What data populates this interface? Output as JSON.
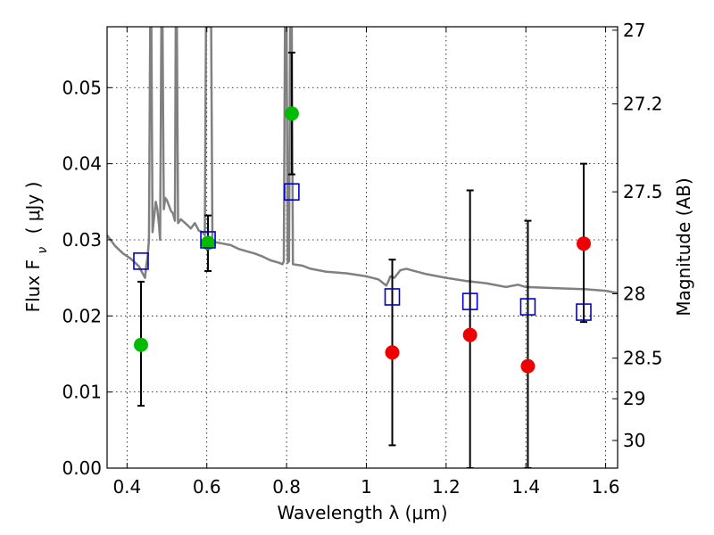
{
  "chart_data": {
    "type": "scatter",
    "xlabel": "Wavelength  λ (μm)",
    "ylabel": "Flux  F",
    "ylabel_sub": "ν",
    "ylabel_unit": "( μJy )",
    "y2label": "Magnitude (AB)",
    "xlim": [
      0.35,
      1.63
    ],
    "ylim": [
      0.0,
      0.058
    ],
    "grid": true,
    "x_ticks": [
      0.4,
      0.6,
      0.8,
      1.0,
      1.2,
      1.4,
      1.6
    ],
    "x_tick_labels": [
      "0.4",
      "0.6",
      "0.8",
      "1",
      "1.2",
      "1.4",
      "1.6"
    ],
    "y_ticks": [
      0.0,
      0.01,
      0.02,
      0.03,
      0.04,
      0.05
    ],
    "y_tick_labels": [
      "0.00",
      "0.01",
      "0.02",
      "0.03",
      "0.04",
      "0.05"
    ],
    "y2_ticks": [
      27,
      27.2,
      27.5,
      28,
      28.5,
      29,
      30
    ],
    "y2_tick_labels": [
      "27",
      "27.2",
      "27.5",
      "28",
      "28.5",
      "29",
      "30"
    ],
    "colors": {
      "model": "#808080",
      "green_points": "#00bb00",
      "red_points": "#ee0000",
      "model_squares": "#0000cc",
      "errorbars": "#000000"
    },
    "series": [
      {
        "kind": "line",
        "points": [
          [
            0.35,
            0.0306
          ],
          [
            0.37,
            0.0292
          ],
          [
            0.39,
            0.0282
          ],
          [
            0.41,
            0.0275
          ],
          [
            0.43,
            0.0265
          ],
          [
            0.44,
            0.0255
          ],
          [
            0.445,
            0.025
          ],
          [
            0.448,
            0.0265
          ],
          [
            0.452,
            0.028
          ],
          [
            0.455,
            0.03
          ],
          [
            0.458,
            0.058
          ],
          [
            0.461,
            0.058
          ],
          [
            0.464,
            0.031
          ],
          [
            0.468,
            0.033
          ],
          [
            0.472,
            0.035
          ],
          [
            0.476,
            0.034
          ],
          [
            0.48,
            0.032
          ],
          [
            0.483,
            0.03
          ],
          [
            0.486,
            0.058
          ],
          [
            0.489,
            0.058
          ],
          [
            0.492,
            0.034
          ],
          [
            0.496,
            0.0355
          ],
          [
            0.5,
            0.0352
          ],
          [
            0.505,
            0.0345
          ],
          [
            0.51,
            0.0338
          ],
          [
            0.515,
            0.0335
          ],
          [
            0.52,
            0.0325
          ],
          [
            0.522,
            0.058
          ],
          [
            0.525,
            0.058
          ],
          [
            0.528,
            0.0322
          ],
          [
            0.535,
            0.0327
          ],
          [
            0.55,
            0.032
          ],
          [
            0.56,
            0.0315
          ],
          [
            0.57,
            0.0322
          ],
          [
            0.58,
            0.0312
          ],
          [
            0.59,
            0.031
          ],
          [
            0.595,
            0.0306
          ],
          [
            0.598,
            0.058
          ],
          [
            0.603,
            0.058
          ],
          [
            0.606,
            0.058
          ],
          [
            0.608,
            0.058
          ],
          [
            0.611,
            0.058
          ],
          [
            0.614,
            0.03
          ],
          [
            0.62,
            0.0297
          ],
          [
            0.64,
            0.0295
          ],
          [
            0.66,
            0.0293
          ],
          [
            0.68,
            0.0288
          ],
          [
            0.7,
            0.0285
          ],
          [
            0.72,
            0.0282
          ],
          [
            0.74,
            0.0278
          ],
          [
            0.76,
            0.0273
          ],
          [
            0.78,
            0.027
          ],
          [
            0.79,
            0.0268
          ],
          [
            0.793,
            0.0272
          ],
          [
            0.796,
            0.058
          ],
          [
            0.8,
            0.058
          ],
          [
            0.803,
            0.027
          ],
          [
            0.806,
            0.0272
          ],
          [
            0.809,
            0.058
          ],
          [
            0.813,
            0.058
          ],
          [
            0.816,
            0.0268
          ],
          [
            0.84,
            0.0266
          ],
          [
            0.86,
            0.0262
          ],
          [
            0.9,
            0.0258
          ],
          [
            0.95,
            0.0256
          ],
          [
            1.0,
            0.0252
          ],
          [
            1.03,
            0.0248
          ],
          [
            1.05,
            0.024
          ],
          [
            1.055,
            0.0245
          ],
          [
            1.06,
            0.0252
          ],
          [
            1.07,
            0.025
          ],
          [
            1.085,
            0.026
          ],
          [
            1.1,
            0.0262
          ],
          [
            1.15,
            0.0255
          ],
          [
            1.2,
            0.025
          ],
          [
            1.25,
            0.0246
          ],
          [
            1.3,
            0.0243
          ],
          [
            1.35,
            0.0238
          ],
          [
            1.38,
            0.0241
          ],
          [
            1.4,
            0.0238
          ],
          [
            1.45,
            0.0237
          ],
          [
            1.5,
            0.0236
          ],
          [
            1.55,
            0.0235
          ],
          [
            1.6,
            0.0233
          ],
          [
            1.63,
            0.023
          ]
        ]
      },
      {
        "kind": "points-green",
        "points": [
          {
            "x": 0.435,
            "y": 0.0162,
            "err": [
              0.0082,
              0.0245
            ]
          },
          {
            "x": 0.603,
            "y": 0.0296,
            "err": [
              0.0259,
              0.0332
            ]
          },
          {
            "x": 0.813,
            "y": 0.0466,
            "err": [
              0.0386,
              0.0546
            ]
          }
        ]
      },
      {
        "kind": "points-red",
        "points": [
          {
            "x": 1.065,
            "y": 0.0152,
            "err": [
              0.003,
              0.0274
            ]
          },
          {
            "x": 1.26,
            "y": 0.0175,
            "err": [
              0.0,
              0.0365
            ]
          },
          {
            "x": 1.405,
            "y": 0.0134,
            "err": [
              0.0,
              0.0325
            ]
          },
          {
            "x": 1.545,
            "y": 0.0295,
            "err": [
              0.0192,
              0.04
            ]
          }
        ]
      },
      {
        "kind": "squares",
        "points": [
          {
            "x": 0.435,
            "y": 0.0272
          },
          {
            "x": 0.603,
            "y": 0.03
          },
          {
            "x": 0.813,
            "y": 0.0363
          },
          {
            "x": 1.065,
            "y": 0.0225
          },
          {
            "x": 1.26,
            "y": 0.0219
          },
          {
            "x": 1.405,
            "y": 0.0212
          },
          {
            "x": 1.545,
            "y": 0.0205
          }
        ]
      }
    ]
  }
}
